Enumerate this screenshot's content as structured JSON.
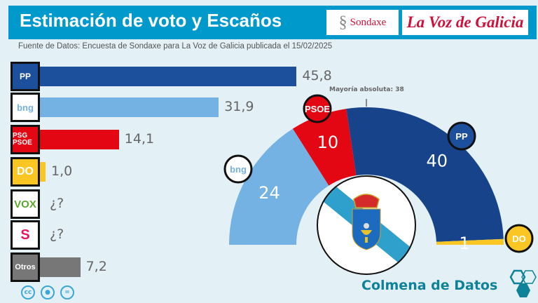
{
  "header": {
    "title": "Estimación de voto y Escaños",
    "logo_sondaxe": "Sondaxe",
    "logo_lavoz": "La Voz de Galicia"
  },
  "source": "Fuente de Datos: Encuesta de Sondaxe para La Voz de Galicia publicada el 15/02/2025",
  "chart_data": [
    {
      "type": "bar",
      "orientation": "horizontal",
      "categories": [
        "PP",
        "BNG",
        "PSdeG-PSOE",
        "DO",
        "VOX",
        "SALF Galicia",
        "Otros"
      ],
      "values": [
        45.8,
        31.9,
        14.1,
        1.0,
        null,
        null,
        7.2
      ],
      "value_labels": [
        "45,8",
        "31,9",
        "14,1",
        "1,0",
        "¿?",
        "¿?",
        "7,2"
      ],
      "colors": [
        "#1c4f9c",
        "#74b2e4",
        "#e30613",
        "#f9c623",
        "#ffffff",
        "#ffffff",
        "#777777"
      ],
      "logo_texts": [
        "PP",
        "bng",
        "PSG PSOE",
        "DO",
        "VOX",
        "S",
        "Otros"
      ]
    },
    {
      "type": "pie",
      "subtype": "hemicycle",
      "categories": [
        "BNG",
        "PSdeG-PSOE",
        "PP",
        "DO"
      ],
      "values": [
        24,
        10,
        40,
        1
      ],
      "colors": [
        "#74b2e4",
        "#e30613",
        "#164389",
        "#f9c623"
      ],
      "annotation": "Mayoría absoluta: 38"
    }
  ],
  "footer": {
    "brand": "Colmena de Datos",
    "license": [
      "cc",
      "by",
      "nd"
    ]
  }
}
